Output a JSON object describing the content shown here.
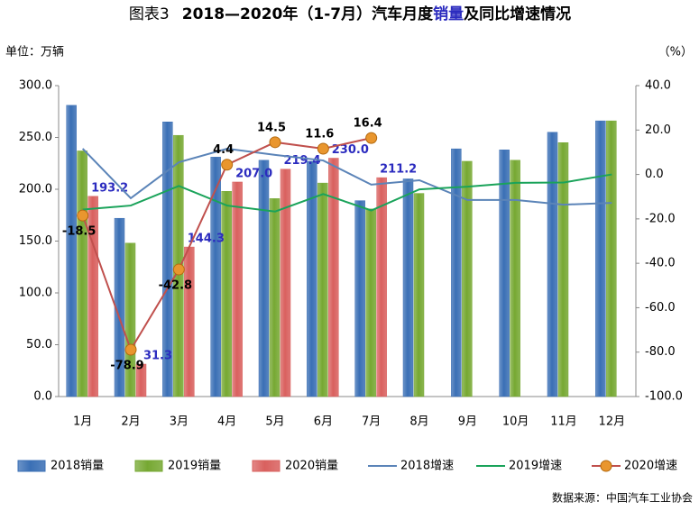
{
  "chart_data": {
    "type": "bar-line",
    "title_parts": [
      "图表3",
      "2018—2020年（1-7月）汽车月度",
      "销量",
      "及同比增速情况"
    ],
    "y_label": "单位：万辆",
    "y2_label": "（%）",
    "source": "数据来源：中国汽车工业协会",
    "categories": [
      "1月",
      "2月",
      "3月",
      "4月",
      "5月",
      "6月",
      "7月",
      "8月",
      "9月",
      "10月",
      "11月",
      "12月"
    ],
    "ylim": [
      0,
      300
    ],
    "yticks": [
      {
        "value": 0,
        "label": "0.0"
      },
      {
        "value": 50,
        "label": "50.0"
      },
      {
        "value": 100,
        "label": "100.0"
      },
      {
        "value": 150,
        "label": "150.0"
      },
      {
        "value": 200,
        "label": "200.0"
      },
      {
        "value": 250,
        "label": "250.0"
      },
      {
        "value": 300,
        "label": "300.0"
      }
    ],
    "y2lim": [
      -100,
      40
    ],
    "y2ticks": [
      {
        "value": -100,
        "label": "-100.0"
      },
      {
        "value": -80,
        "label": "-80.0"
      },
      {
        "value": -60,
        "label": "-60.0"
      },
      {
        "value": -40,
        "label": "-40.0"
      },
      {
        "value": -20,
        "label": "-20.0"
      },
      {
        "value": 0,
        "label": "0.0"
      },
      {
        "value": 20,
        "label": "20.0"
      },
      {
        "value": 40,
        "label": "40.0"
      }
    ],
    "grid": false,
    "legend": "bottom",
    "series": [
      {
        "name": "2018销量",
        "type": "bar",
        "color": "#3a6fb5",
        "values": [
          281,
          172,
          265,
          231,
          228,
          227,
          189,
          210,
          239,
          238,
          255,
          266
        ]
      },
      {
        "name": "2019销量",
        "type": "bar",
        "color": "#76a832",
        "values": [
          237,
          148,
          252,
          198,
          191,
          206,
          181,
          196,
          227,
          228,
          245,
          266
        ]
      },
      {
        "name": "2020销量",
        "type": "bar",
        "color": "#d9605e",
        "values": [
          193.2,
          31.3,
          144.3,
          207.0,
          219.4,
          230.0,
          211.2,
          null,
          null,
          null,
          null,
          null
        ],
        "value_labels": [
          "193.2",
          "31.3",
          "144.3",
          "207.0",
          "219.4",
          "230.0",
          "211.2",
          null,
          null,
          null,
          null,
          null
        ],
        "label_color": "#2b2bbf"
      },
      {
        "name": "2018增速",
        "type": "line",
        "axis": "y2",
        "color": "#5b84b8",
        "values": [
          11.6,
          -10.7,
          5.5,
          11.6,
          8.8,
          6.3,
          -4.6,
          -2.6,
          -11.5,
          -11.5,
          -13.6,
          -12.8
        ]
      },
      {
        "name": "2019增速",
        "type": "line",
        "axis": "y2",
        "color": "#1aa35a",
        "values": [
          -15.8,
          -14.0,
          -5.2,
          -14.0,
          -16.7,
          -8.8,
          -16.2,
          -6.7,
          -5.5,
          -3.8,
          -3.6,
          0
        ]
      },
      {
        "name": "2020增速",
        "type": "line",
        "axis": "y2",
        "color": "#c0504d",
        "marker_color": "#e9962e",
        "markers": true,
        "labels": true,
        "values": [
          -18.5,
          -78.9,
          -42.8,
          4.4,
          14.5,
          11.6,
          16.4,
          null,
          null,
          null,
          null,
          null
        ]
      }
    ]
  }
}
